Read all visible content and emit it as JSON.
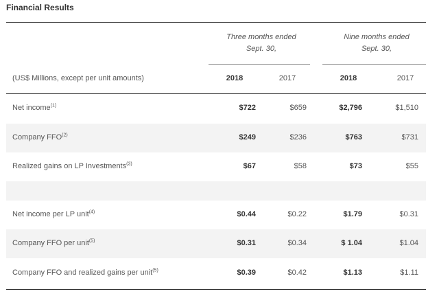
{
  "title": "Financial Results",
  "group_headers": [
    {
      "line1": "Three months ended",
      "line2": "Sept. 30,"
    },
    {
      "line1": "Nine months ended",
      "line2": "Sept. 30,"
    }
  ],
  "units_label": "(US$ Millions, except per unit amounts)",
  "columns": [
    "2018",
    "2017",
    "2018",
    "2017"
  ],
  "rows": [
    {
      "label": "Net income",
      "note": "(1)",
      "values": [
        "$722",
        "$659",
        "$2,796",
        "$1,510"
      ]
    },
    {
      "label": "Company FFO",
      "note": "(2)",
      "values": [
        "$249",
        "$236",
        "$763",
        "$731"
      ]
    },
    {
      "label": "Realized gains on LP Investments",
      "note": "(3)",
      "values": [
        "$67",
        "$58",
        "$73",
        "$55"
      ]
    },
    {
      "label": "Net income per LP unit",
      "note": "(4)",
      "values": [
        "$0.44",
        "$0.22",
        "$1.79",
        "$0.31"
      ]
    },
    {
      "label": "Company FFO per unit",
      "note": "(5)",
      "values": [
        "$0.31",
        "$0.34",
        "$ 1.04",
        "$1.04"
      ]
    },
    {
      "label": "Company FFO and realized gains per unit",
      "note": "(5)",
      "values": [
        "$0.39",
        "$0.42",
        "$1.13",
        "$1.11"
      ]
    }
  ]
}
